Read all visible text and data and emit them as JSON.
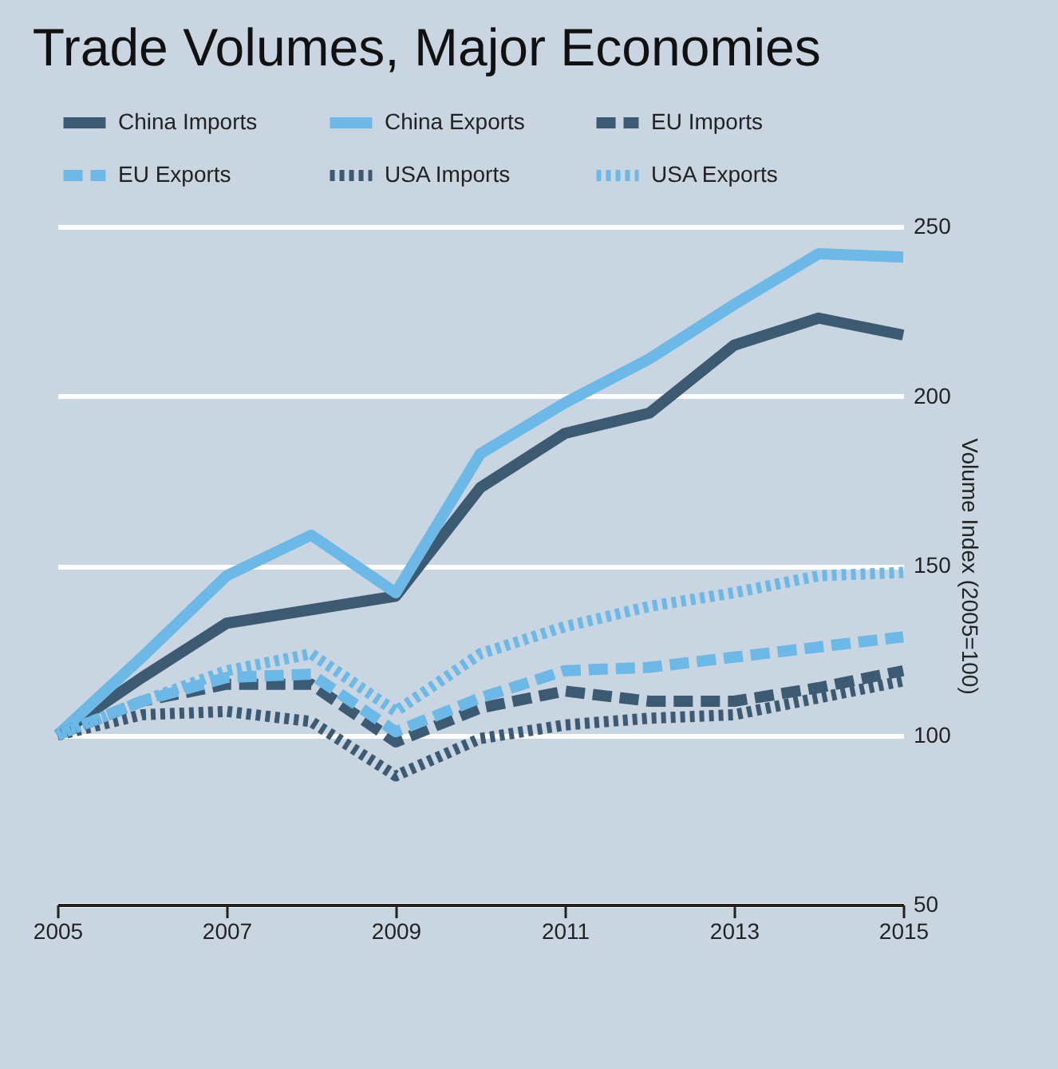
{
  "chart_data": {
    "type": "line",
    "title": "Trade Volumes, Major Economies",
    "ylabel": "Volume Index (2005=100)",
    "x": [
      2005,
      2006,
      2007,
      2008,
      2009,
      2010,
      2011,
      2012,
      2013,
      2014,
      2015
    ],
    "xlim": [
      2005,
      2015
    ],
    "xticks": [
      2005,
      2007,
      2009,
      2011,
      2013,
      2015
    ],
    "ylim": [
      50,
      250
    ],
    "yticks": [
      50,
      100,
      150,
      200,
      250
    ],
    "grid": "y",
    "legend": "top",
    "marker": "none",
    "series": [
      {
        "name": "China Imports",
        "color": "#3d5a73",
        "line_style": "solid",
        "values": [
          100,
          117,
          133,
          137,
          141,
          173,
          189,
          195,
          215,
          223,
          218
        ]
      },
      {
        "name": "China Exports",
        "color": "#6cb8e6",
        "line_style": "solid",
        "values": [
          100,
          123,
          147,
          159,
          142,
          183,
          198,
          211,
          227,
          242,
          241
        ]
      },
      {
        "name": "EU Imports",
        "color": "#3d5a73",
        "line_style": "dashed",
        "values": [
          100,
          110,
          115,
          115,
          98,
          108,
          113,
          110,
          110,
          114,
          119
        ]
      },
      {
        "name": "EU Exports",
        "color": "#6cb8e6",
        "line_style": "dashed",
        "values": [
          100,
          110,
          117,
          118,
          101,
          111,
          119,
          120,
          123,
          126,
          129
        ]
      },
      {
        "name": "USA Imports",
        "color": "#3d5a73",
        "line_style": "dotted",
        "values": [
          100,
          106,
          107,
          104,
          88,
          99,
          103,
          105,
          106,
          111,
          116
        ]
      },
      {
        "name": "USA Exports",
        "color": "#6cb8e6",
        "line_style": "dotted",
        "values": [
          100,
          110,
          119,
          124,
          107,
          124,
          132,
          138,
          142,
          147,
          148
        ]
      }
    ]
  }
}
